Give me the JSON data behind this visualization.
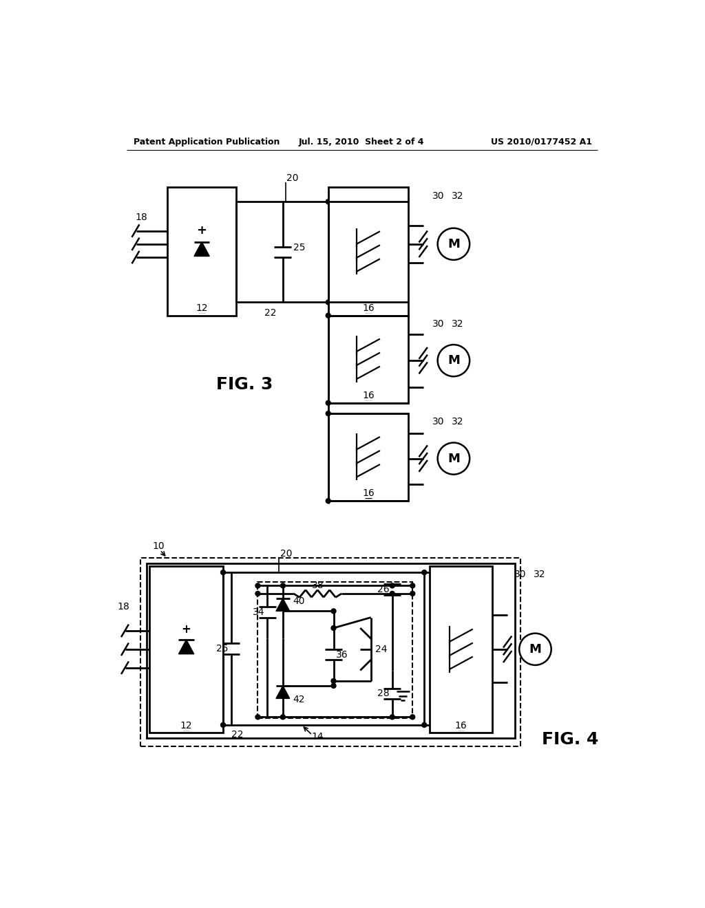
{
  "bg_color": "#ffffff",
  "header_left": "Patent Application Publication",
  "header_center": "Jul. 15, 2010  Sheet 2 of 4",
  "header_right": "US 2010/0177452 A1"
}
